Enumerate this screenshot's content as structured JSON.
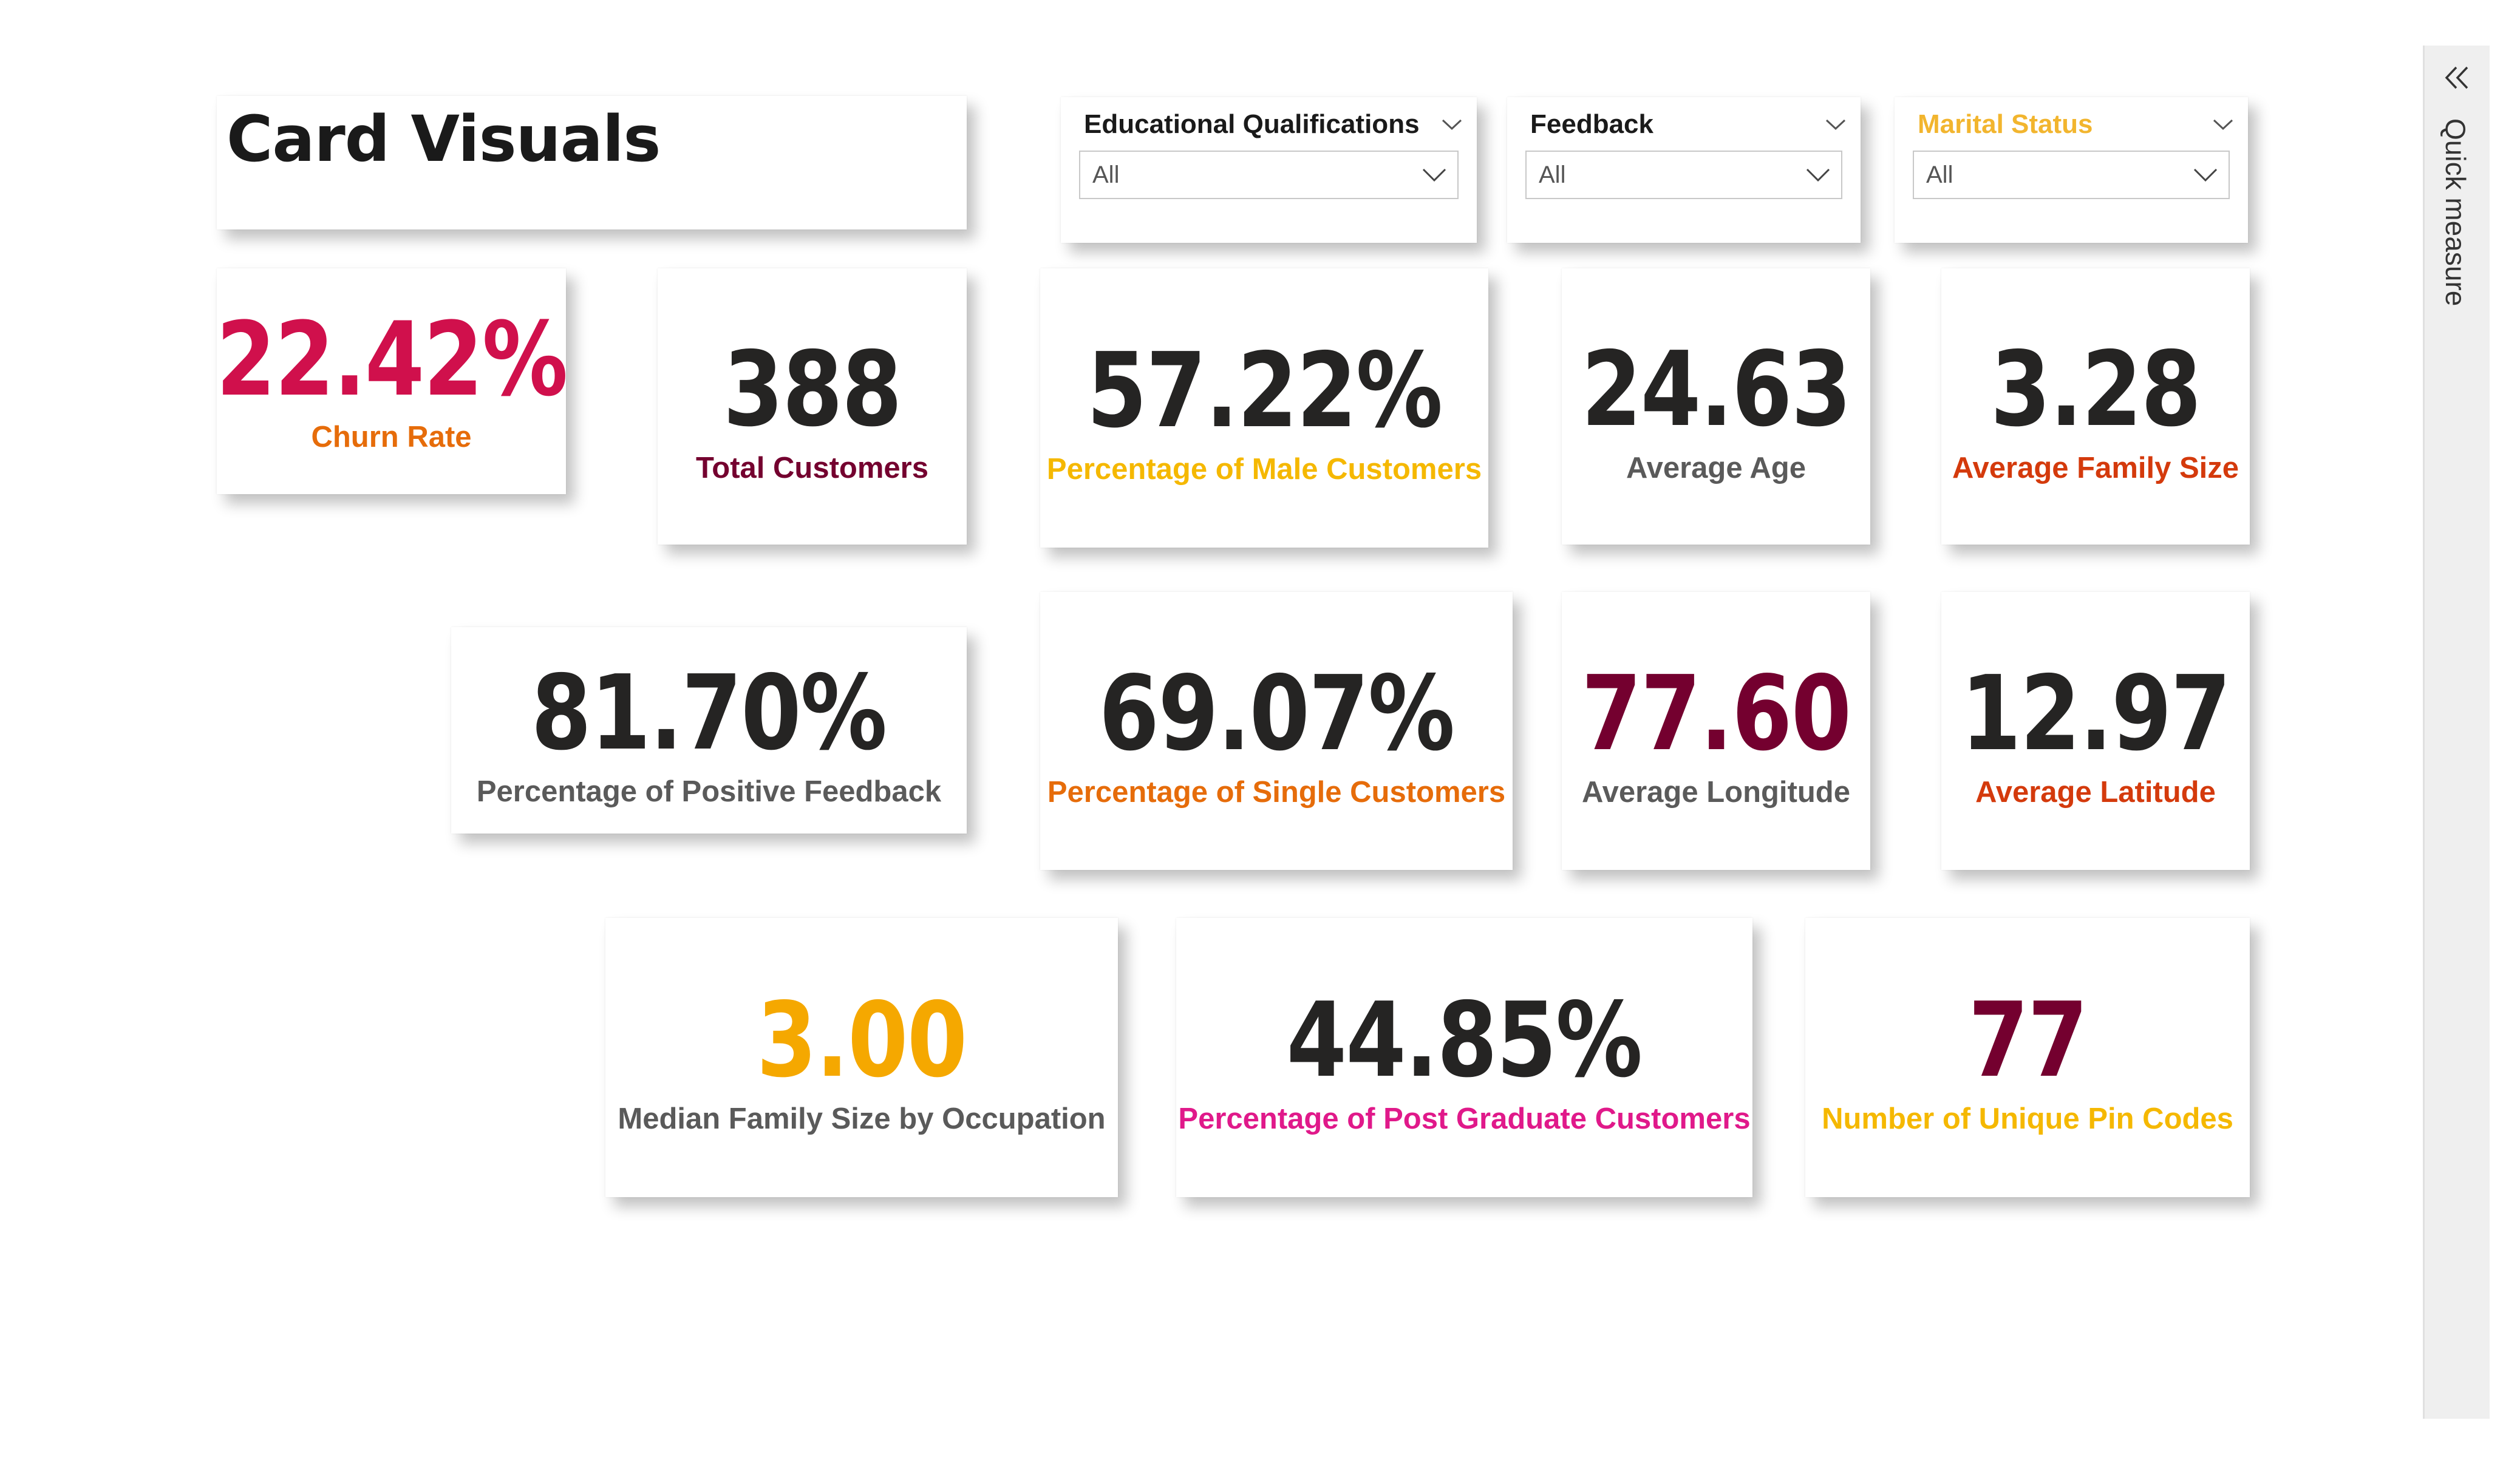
{
  "title": "Card Visuals",
  "slicers": [
    {
      "label": "Educational Qualifications",
      "value": "All",
      "label_color": "#1a1a1a"
    },
    {
      "label": "Feedback",
      "value": "All",
      "label_color": "#1a1a1a"
    },
    {
      "label": "Marital Status",
      "value": "All",
      "label_color": "#f2b52e"
    }
  ],
  "cards": [
    {
      "value": "22.42%",
      "label": "Churn Rate",
      "value_color": "#d0104c",
      "label_color": "#e66c0a"
    },
    {
      "value": "388",
      "label": "Total Customers",
      "value_color": "#252423",
      "label_color": "#74002f"
    },
    {
      "value": "57.22%",
      "label": "Percentage of Male Customers",
      "value_color": "#252423",
      "label_color": "#f5b800"
    },
    {
      "value": "24.63",
      "label": "Average Age",
      "value_color": "#252423",
      "label_color": "#5a5a5a"
    },
    {
      "value": "3.28",
      "label": "Average Family Size",
      "value_color": "#252423",
      "label_color": "#d43a0c"
    },
    {
      "value": "81.70%",
      "label": "Percentage of Positive Feedback",
      "value_color": "#252423",
      "label_color": "#5a5a5a"
    },
    {
      "value": "69.07%",
      "label": "Percentage of Single Customers",
      "value_color": "#252423",
      "label_color": "#e66c0a"
    },
    {
      "value": "77.60",
      "label": "Average Longitude",
      "value_color": "#74002f",
      "label_color": "#5a5a5a"
    },
    {
      "value": "12.97",
      "label": "Average Latitude",
      "value_color": "#252423",
      "label_color": "#d43a0c"
    },
    {
      "value": "3.00",
      "label": "Median Family Size by Occupation",
      "value_color": "#f5a800",
      "label_color": "#5a5a5a"
    },
    {
      "value": "44.85%",
      "label": "Percentage of Post Graduate Customers",
      "value_color": "#252423",
      "label_color": "#e0198a"
    },
    {
      "value": "77",
      "label": "Number of Unique Pin Codes",
      "value_color": "#74002f",
      "label_color": "#f5b800"
    }
  ],
  "rail": {
    "label": "Quick measure",
    "icon": "double-chevron-left-icon"
  },
  "icons": {
    "dropdown": "chevron-down-icon"
  }
}
